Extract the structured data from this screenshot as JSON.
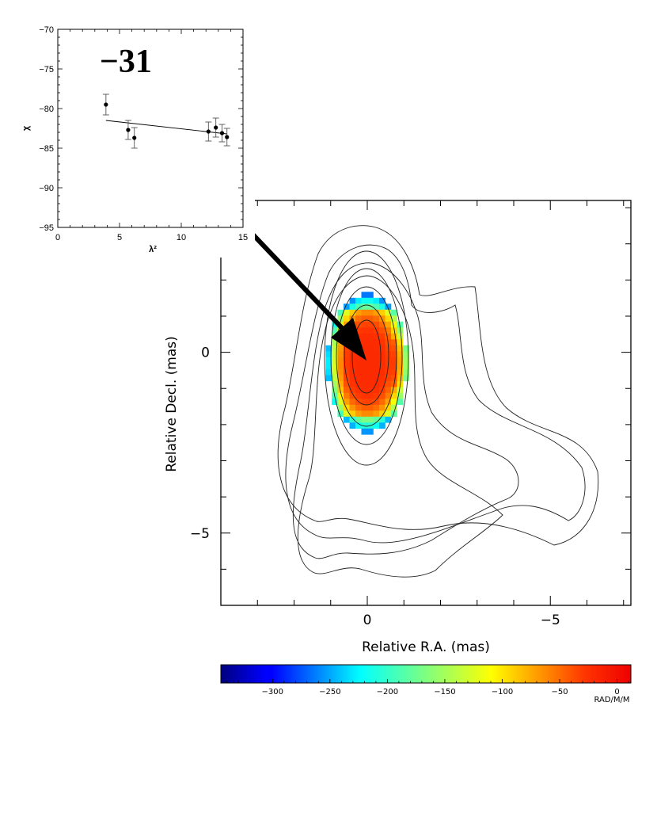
{
  "chart_data": [
    {
      "type": "scatter",
      "panel": "inset",
      "annotation": "−31",
      "xlabel": "λ²",
      "ylabel": "χ",
      "xlim": [
        0,
        15
      ],
      "ylim": [
        -95,
        -70
      ],
      "xticks": [
        0,
        5,
        10,
        15
      ],
      "yticks": [
        -70,
        -75,
        -80,
        -85,
        -90,
        -95
      ],
      "points": [
        {
          "x": 3.9,
          "y": -79.5,
          "err": 1.3
        },
        {
          "x": 5.7,
          "y": -82.7,
          "err": 1.2
        },
        {
          "x": 6.2,
          "y": -83.7,
          "err": 1.3
        },
        {
          "x": 12.2,
          "y": -82.9,
          "err": 1.2
        },
        {
          "x": 12.8,
          "y": -82.4,
          "err": 1.2
        },
        {
          "x": 13.3,
          "y": -83.1,
          "err": 1.1
        },
        {
          "x": 13.7,
          "y": -83.6,
          "err": 1.1
        }
      ],
      "fit_line": {
        "x": [
          3.9,
          13.7
        ],
        "y": [
          -81.5,
          -83.2
        ]
      }
    },
    {
      "type": "heatmap",
      "panel": "main",
      "description_contours": "total intensity contours",
      "xlabel": "Relative R.A. (mas)",
      "ylabel": "Relative Decl. (mas)",
      "xlim": [
        4,
        -7.2
      ],
      "ylim": [
        -7,
        4.2
      ],
      "xticks": [
        0,
        -5
      ],
      "xtick_labels": [
        "0",
        "−5"
      ],
      "yticks": [
        0,
        -5
      ],
      "ytick_labels": [
        "0",
        "−5"
      ],
      "colorbar": {
        "min": -345,
        "max": 12,
        "ticks": [
          -300,
          -250,
          -200,
          -150,
          -100,
          -50,
          0
        ],
        "tick_labels": [
          "−300",
          "−250",
          "−200",
          "−150",
          "−100",
          "−50",
          "0"
        ],
        "unit": "RAD/M/M"
      }
    }
  ]
}
